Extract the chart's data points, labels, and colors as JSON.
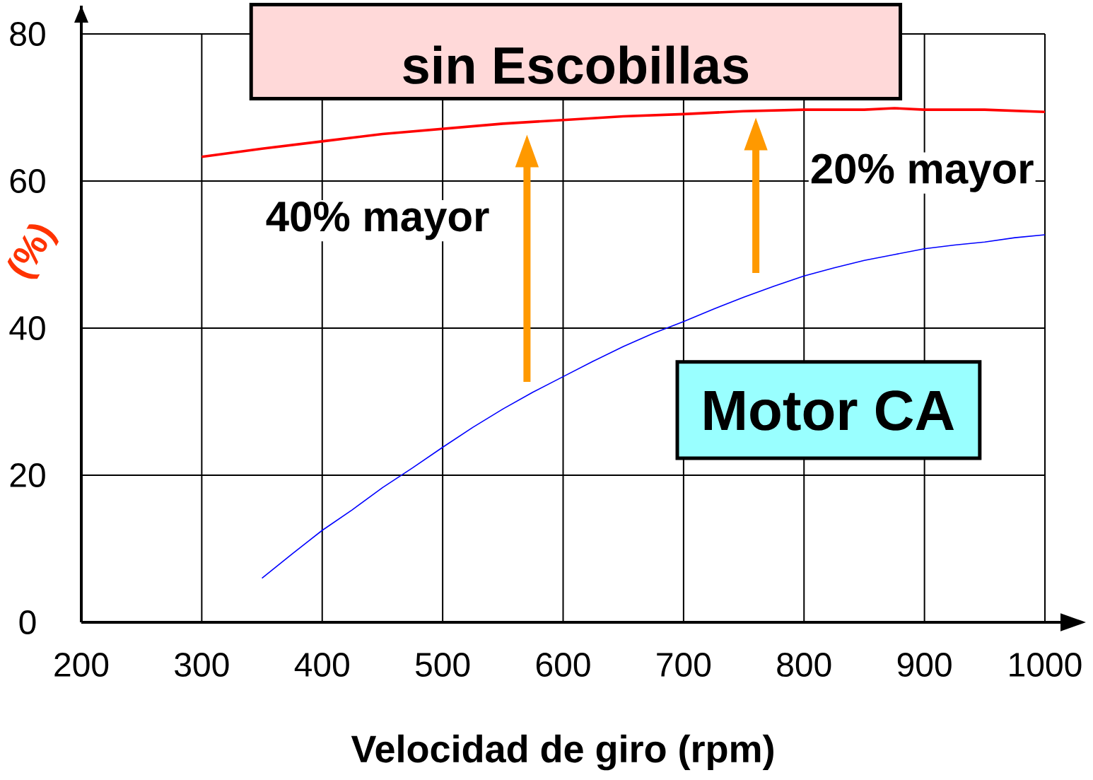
{
  "chart_data": {
    "type": "line",
    "xlabel": "Velocidad de giro (rpm)",
    "ylabel": "(%)",
    "xlim": [
      200,
      1000
    ],
    "xticks": [
      200,
      300,
      400,
      500,
      600,
      700,
      800,
      900,
      1000
    ],
    "ylim": [
      0,
      80
    ],
    "yticks": [
      0,
      20,
      40,
      60,
      80
    ],
    "grid": true,
    "series": [
      {
        "name": "sin Escobillas",
        "color": "#ff0000",
        "x": [
          300,
          350,
          400,
          450,
          500,
          550,
          600,
          650,
          700,
          750,
          800,
          850,
          875,
          900,
          950,
          1000
        ],
        "values": [
          63.3,
          64.4,
          65.4,
          66.4,
          67.1,
          67.8,
          68.3,
          68.8,
          69.1,
          69.5,
          69.7,
          69.7,
          69.9,
          69.7,
          69.7,
          69.4
        ]
      },
      {
        "name": "Motor CA",
        "color": "#0000ff",
        "x": [
          350,
          375,
          400,
          425,
          450,
          475,
          500,
          525,
          550,
          575,
          600,
          625,
          650,
          675,
          700,
          725,
          750,
          775,
          800,
          825,
          850,
          875,
          900,
          925,
          950,
          975,
          1000
        ],
        "values": [
          6.0,
          9.3,
          12.5,
          15.3,
          18.3,
          21.0,
          23.8,
          26.5,
          29.0,
          31.3,
          33.4,
          35.5,
          37.5,
          39.3,
          40.9,
          42.6,
          44.2,
          45.7,
          47.1,
          48.2,
          49.2,
          50.0,
          50.8,
          51.3,
          51.7,
          52.3,
          52.7
        ]
      }
    ],
    "annotations": [
      "40% mayor",
      "20% mayor"
    ]
  }
}
